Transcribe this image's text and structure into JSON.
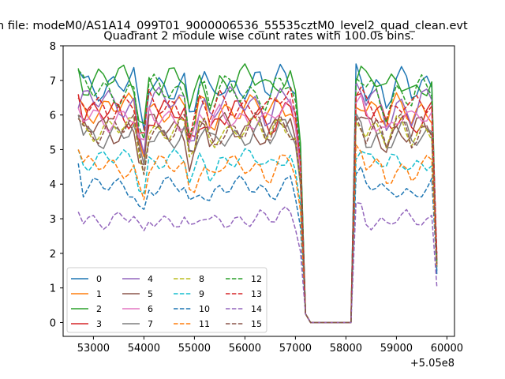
{
  "chart_data": {
    "type": "line",
    "suptitle": "n file: modeM0/AS1A14_099T01_9000006536_55535cztM0_level2_quad_clean.evt",
    "title": "Quadrant 2 module wise count rates with 100.0s bins.",
    "xlabel": "",
    "ylabel": "",
    "offset_text": "+5.05e8",
    "xlim": [
      52400,
      60150
    ],
    "ylim": [
      -0.4,
      8.0
    ],
    "xticks": [
      53000,
      54000,
      55000,
      56000,
      57000,
      58000,
      59000,
      60000
    ],
    "xtick_labels": [
      "53000",
      "54000",
      "55000",
      "56000",
      "57000",
      "58000",
      "59000",
      "60000"
    ],
    "yticks": [
      0,
      1,
      2,
      3,
      4,
      5,
      6,
      7,
      8
    ],
    "ytick_labels": [
      "0",
      "1",
      "2",
      "3",
      "4",
      "5",
      "6",
      "7",
      "8"
    ],
    "grid": false,
    "legend_position": "lower-left",
    "legend_columns": 4,
    "gap_start": 57400,
    "gap_end": 58100,
    "series": [
      {
        "name": "0",
        "color": "#1f77b4",
        "style": "solid",
        "level": 6.9,
        "amp": 0.32,
        "first": 7.3,
        "last": 1.4
      },
      {
        "name": "1",
        "color": "#ff7f0e",
        "style": "solid",
        "level": 6.2,
        "amp": 0.28,
        "first": 6.5,
        "last": 1.9
      },
      {
        "name": "2",
        "color": "#2ca02c",
        "style": "solid",
        "level": 7.0,
        "amp": 0.32,
        "first": 7.35,
        "last": 1.6
      },
      {
        "name": "3",
        "color": "#d62728",
        "style": "solid",
        "level": 6.0,
        "amp": 0.3,
        "first": 6.6,
        "last": 1.8
      },
      {
        "name": "4",
        "color": "#9467bd",
        "style": "solid",
        "level": 6.35,
        "amp": 0.3,
        "first": 6.2,
        "last": 1.9
      },
      {
        "name": "5",
        "color": "#8c564b",
        "style": "solid",
        "level": 5.6,
        "amp": 0.3,
        "first": 6.0,
        "last": 1.7
      },
      {
        "name": "6",
        "color": "#e377c2",
        "style": "solid",
        "level": 5.95,
        "amp": 0.28,
        "first": 6.2,
        "last": 1.9
      },
      {
        "name": "7",
        "color": "#7f7f7f",
        "style": "solid",
        "level": 5.45,
        "amp": 0.28,
        "first": 6.0,
        "last": 1.6
      },
      {
        "name": "8",
        "color": "#bcbd22",
        "style": "dashed",
        "level": 5.6,
        "amp": 0.25,
        "first": 5.9,
        "last": 1.8
      },
      {
        "name": "9",
        "color": "#17becf",
        "style": "dashed",
        "level": 4.7,
        "amp": 0.22,
        "first": 5.0,
        "last": 1.6
      },
      {
        "name": "10",
        "color": "#1f77b4",
        "style": "dashed",
        "level": 3.9,
        "amp": 0.22,
        "first": 4.6,
        "last": 1.5
      },
      {
        "name": "11",
        "color": "#ff7f0e",
        "style": "dashed",
        "level": 4.5,
        "amp": 0.22,
        "first": 5.0,
        "last": 1.6
      },
      {
        "name": "12",
        "color": "#2ca02c",
        "style": "dashed",
        "level": 6.7,
        "amp": 0.3,
        "first": 7.3,
        "last": 1.7
      },
      {
        "name": "13",
        "color": "#d62728",
        "style": "dashed",
        "level": 6.3,
        "amp": 0.3,
        "first": 6.5,
        "last": 2.0
      },
      {
        "name": "14",
        "color": "#9467bd",
        "style": "dashed",
        "level": 3.0,
        "amp": 0.2,
        "first": 3.2,
        "last": 1.05
      },
      {
        "name": "15",
        "color": "#8c564b",
        "style": "dashed",
        "level": 5.6,
        "amp": 0.3,
        "first": 5.9,
        "last": 1.7
      }
    ]
  }
}
